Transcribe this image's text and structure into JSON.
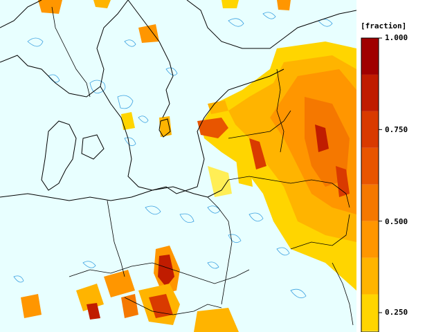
{
  "legend": {
    "unit": "[fraction]",
    "ticks": [
      "1.000",
      "0.750",
      "0.500",
      "0.250"
    ],
    "tick_values": [
      1.0,
      0.75,
      0.5,
      0.25
    ],
    "bands": [
      {
        "color": "#ffff99"
      },
      {
        "color": "#ffee55"
      },
      {
        "color": "#ffd500"
      },
      {
        "color": "#ffb400"
      },
      {
        "color": "#ff9600"
      },
      {
        "color": "#f57800"
      },
      {
        "color": "#e85500"
      },
      {
        "color": "#d93a00"
      },
      {
        "color": "#c01c00"
      },
      {
        "color": "#a00000"
      }
    ],
    "visible_range": [
      0.2,
      1.0
    ]
  },
  "map": {
    "background_color": "#e8ffff",
    "coastline_color": "#000000",
    "contour_color": "#3aa0e0"
  }
}
